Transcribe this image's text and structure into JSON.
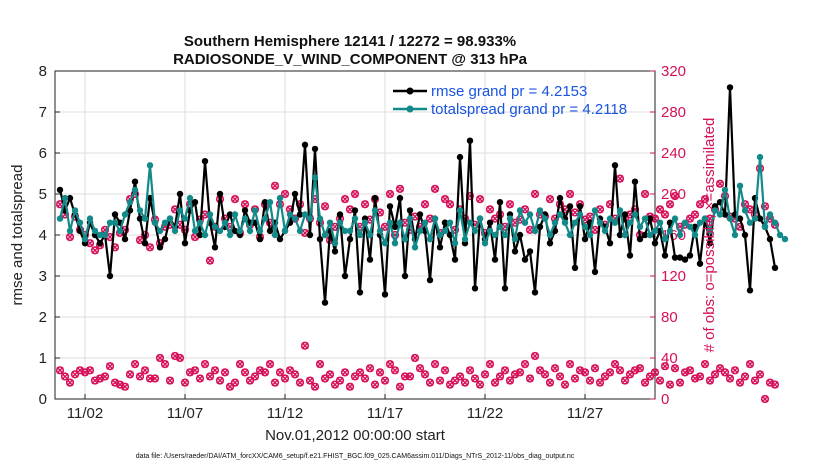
{
  "chart_data": {
    "type": "line",
    "title": "Southern Hemisphere 12141 / 12272 = 98.933%",
    "subtitle": "RADIOSONDE_V_WIND_COMPONENT @ 313 hPa",
    "xlabel": "Nov.01,2012 00:00:00 start",
    "ylabel": "rmse and totalspread",
    "ylabel_right": "# of obs: o=possible; ×=assimilated",
    "footnote": "data file: /Users/raeder/DAI/ATM_forcXX/CAM6_setup/f.e21.FHIST_BGC.f09_025.CAM6assim.011/Diags_NTrS_2012-11/obs_diag_output.nc",
    "xlim": [
      0.5,
      30.5
    ],
    "ylim": [
      0,
      8
    ],
    "ylim_right": [
      0,
      320
    ],
    "x_ticks": [
      {
        "value": 2,
        "label": "11/02"
      },
      {
        "value": 7,
        "label": "11/07"
      },
      {
        "value": 12,
        "label": "11/12"
      },
      {
        "value": 17,
        "label": "11/17"
      },
      {
        "value": 22,
        "label": "11/22"
      },
      {
        "value": 27,
        "label": "11/27"
      }
    ],
    "y_ticks": [
      0,
      1,
      2,
      3,
      4,
      5,
      6,
      7,
      8
    ],
    "y_ticks_right": [
      0,
      40,
      80,
      120,
      160,
      200,
      240,
      280,
      320
    ],
    "grid": true,
    "legend_position": "top-right",
    "colors": {
      "rmse": "#000000",
      "totalspread": "#138a8a",
      "obs": "#d6105a",
      "grid": "#dddddd",
      "legend_text": "#1a55e0"
    },
    "series": [
      {
        "name": "rmse grand pr = 4.2153",
        "axis": "left",
        "x_start": 0.75,
        "x_step": 0.25,
        "values": [
          5.1,
          4.6,
          4.9,
          4.5,
          4.1,
          3.8,
          4.3,
          4.0,
          3.8,
          4.0,
          3.0,
          4.5,
          4.3,
          3.9,
          4.6,
          5.3,
          4.4,
          3.8,
          4.9,
          4.3,
          3.7,
          3.9,
          4.4,
          4.2,
          5.0,
          3.8,
          4.6,
          4.8,
          4.0,
          5.8,
          4.3,
          3.7,
          5.0,
          4.2,
          4.5,
          4.1,
          4.0,
          4.6,
          4.3,
          4.3,
          3.9,
          4.8,
          4.1,
          4.3,
          3.9,
          4.1,
          4.3,
          5.0,
          4.5,
          6.2,
          4.0,
          6.1,
          3.9,
          2.35,
          4.1,
          3.6,
          4.5,
          3.0,
          3.9,
          4.6,
          2.6,
          4.4,
          3.4,
          4.9,
          4.0,
          2.55,
          4.7,
          4.2,
          4.9,
          3.0,
          4.6,
          3.9,
          4.5,
          4.1,
          2.9,
          4.4,
          3.7,
          4.3,
          4.0,
          3.4,
          5.9,
          3.8,
          6.3,
          2.7,
          4.4,
          3.9,
          4.3,
          3.4,
          4.8,
          2.7,
          4.5,
          3.6,
          4.0,
          3.4,
          3.6,
          2.6,
          4.2,
          4.5,
          3.8,
          4.1,
          4.9,
          4.4,
          4.7,
          3.2,
          4.7,
          3.9,
          4.3,
          3.1,
          4.4,
          4.2,
          3.8,
          5.7,
          4.0,
          4.5,
          3.5,
          5.3,
          3.9,
          4.0,
          4.4,
          3.8,
          4.1,
          3.5,
          4.3,
          3.45,
          3.45,
          3.4,
          3.5,
          4.2,
          3.3,
          4.4,
          3.8,
          4.7,
          4.8,
          4.5,
          7.6,
          4.5,
          4.4,
          4.0,
          2.65,
          4.9,
          4.4,
          4.2,
          3.9,
          3.2
        ]
      },
      {
        "name": "totalspread grand pr = 4.2118",
        "axis": "left",
        "x_start": 0.75,
        "x_step": 0.25,
        "values": [
          4.4,
          4.9,
          4.1,
          4.6,
          4.3,
          3.9,
          4.4,
          4.1,
          4.0,
          4.0,
          4.3,
          4.3,
          4.1,
          4.5,
          4.8,
          5.1,
          4.6,
          4.4,
          5.7,
          4.3,
          4.1,
          4.3,
          4.4,
          4.1,
          4.6,
          4.4,
          4.9,
          4.1,
          4.3,
          4.0,
          4.5,
          4.2,
          4.1,
          4.3,
          4.0,
          4.5,
          4.1,
          4.4,
          4.1,
          4.6,
          4.1,
          4.4,
          4.8,
          4.0,
          4.9,
          4.1,
          4.5,
          4.4,
          4.1,
          4.5,
          4.4,
          5.4,
          4.4,
          4.0,
          4.3,
          3.8,
          4.3,
          4.1,
          4.1,
          4.4,
          4.0,
          4.3,
          4.0,
          4.6,
          4.1,
          3.8,
          4.3,
          3.8,
          4.3,
          3.9,
          4.4,
          3.7,
          4.1,
          4.3,
          3.9,
          4.4,
          4.0,
          4.1,
          4.3,
          3.8,
          4.6,
          3.9,
          4.3,
          4.1,
          4.4,
          3.8,
          4.1,
          4.0,
          4.2,
          4.0,
          4.4,
          3.9,
          4.6,
          4.3,
          4.5,
          4.1,
          4.6,
          4.4,
          4.0,
          4.3,
          4.5,
          4.3,
          4.0,
          4.3,
          4.5,
          4.2,
          4.0,
          4.6,
          4.3,
          4.1,
          4.4,
          4.3,
          4.6,
          4.0,
          4.3,
          4.5,
          4.2,
          4.4,
          4.0,
          4.1,
          4.3,
          3.9,
          4.1,
          4.4,
          4.0,
          4.3,
          4.2,
          4.0,
          4.3,
          4.4,
          4.1,
          4.6,
          4.5,
          5.1,
          4.4,
          4.0,
          5.2,
          4.6,
          4.3,
          4.4,
          5.9,
          4.2,
          4.5,
          4.3,
          4.0,
          3.9
        ]
      },
      {
        "name": "obs possible",
        "axis": "right",
        "marker": "o",
        "x_start": 0.75,
        "x_step": 0.25,
        "values": [
          190,
          180,
          158,
          178,
          165,
          160,
          152,
          145,
          150,
          165,
          158,
          148,
          162,
          165,
          195,
          200,
          155,
          160,
          148,
          175,
          152,
          168,
          170,
          185,
          170,
          165,
          190,
          158,
          175,
          180,
          135,
          168,
          195,
          176,
          168,
          195,
          162,
          190,
          170,
          185,
          158,
          190,
          172,
          208,
          190,
          200,
          185,
          176,
          190,
          162,
          176,
          195,
          172,
          188,
          155,
          168,
          176,
          195,
          185,
          200,
          168,
          190,
          175,
          195,
          182,
          168,
          200,
          160,
          205,
          172,
          165,
          178,
          168,
          190,
          176,
          205,
          162,
          195,
          190,
          165,
          185,
          176,
          198,
          170,
          195,
          162,
          185,
          176,
          180,
          168,
          190,
          172,
          175,
          185,
          165,
          200,
          180,
          178,
          195,
          176,
          190,
          185,
          200,
          182,
          190,
          175,
          178,
          165,
          185,
          170,
          190,
          176,
          215,
          176,
          180,
          185,
          160,
          200,
          178,
          176,
          185,
          180,
          190,
          198,
          168,
          170,
          176,
          180,
          190,
          195,
          176,
          185,
          210,
          198,
          178,
          176,
          168,
          190,
          185,
          180,
          225,
          188,
          176,
          170
        ]
      },
      {
        "name": "obs assimilated",
        "axis": "right",
        "marker": "x",
        "x_start": 0.75,
        "x_step": 0.25,
        "values": [
          28,
          22,
          16,
          24,
          28,
          26,
          28,
          18,
          20,
          22,
          32,
          16,
          14,
          12,
          24,
          34,
          22,
          28,
          20,
          20,
          40,
          34,
          18,
          42,
          40,
          16,
          26,
          28,
          20,
          34,
          22,
          28,
          18,
          26,
          12,
          16,
          34,
          26,
          18,
          22,
          28,
          26,
          34,
          16,
          26,
          20,
          28,
          24,
          16,
          52,
          18,
          12,
          34,
          20,
          24,
          14,
          18,
          26,
          12,
          22,
          26,
          20,
          30,
          14,
          26,
          18,
          34,
          28,
          12,
          22,
          22,
          40,
          30,
          24,
          16,
          34,
          18,
          28,
          14,
          18,
          22,
          16,
          28,
          20,
          14,
          24,
          34,
          16,
          22,
          28,
          18,
          24,
          26,
          34,
          20,
          42,
          28,
          24,
          16,
          30,
          22,
          14,
          34,
          20,
          28,
          26,
          18,
          30,
          16,
          22,
          26,
          34,
          28,
          18,
          24,
          28,
          30,
          16,
          22,
          26,
          18,
          32,
          14,
          30,
          16,
          26,
          28,
          20,
          22,
          34,
          18,
          24,
          30,
          26,
          20,
          28,
          16,
          22,
          34,
          18,
          24,
          0,
          16,
          14
        ]
      }
    ]
  }
}
